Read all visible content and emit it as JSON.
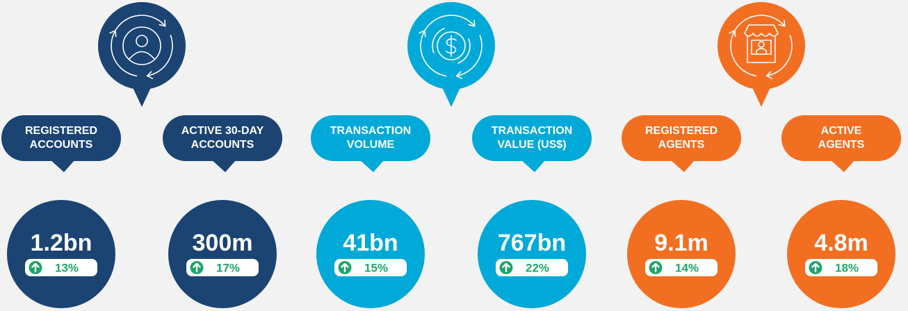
{
  "groups": [
    {
      "metrics": [
        {
          "label": [
            "REGISTERED",
            "ACCOUNTS"
          ],
          "value": "1.2bn",
          "change": "13%"
        },
        {
          "label": [
            "ACTIVE 30-DAY",
            "ACCOUNTS"
          ],
          "value": "300m",
          "change": "17%"
        }
      ]
    },
    {
      "metrics": [
        {
          "label": [
            "TRANSACTION",
            "VOLUME"
          ],
          "value": "41bn",
          "change": "15%"
        },
        {
          "label": [
            "TRANSACTION",
            "VALUE (US$)"
          ],
          "value": "767bn",
          "change": "22%"
        }
      ]
    },
    {
      "metrics": [
        {
          "label": [
            "REGISTERED",
            "AGENTS"
          ],
          "value": "9.1m",
          "change": "14%"
        },
        {
          "label": [
            "ACTIVE",
            "AGENTS"
          ],
          "value": "4.8m",
          "change": "18%"
        }
      ]
    }
  ]
}
